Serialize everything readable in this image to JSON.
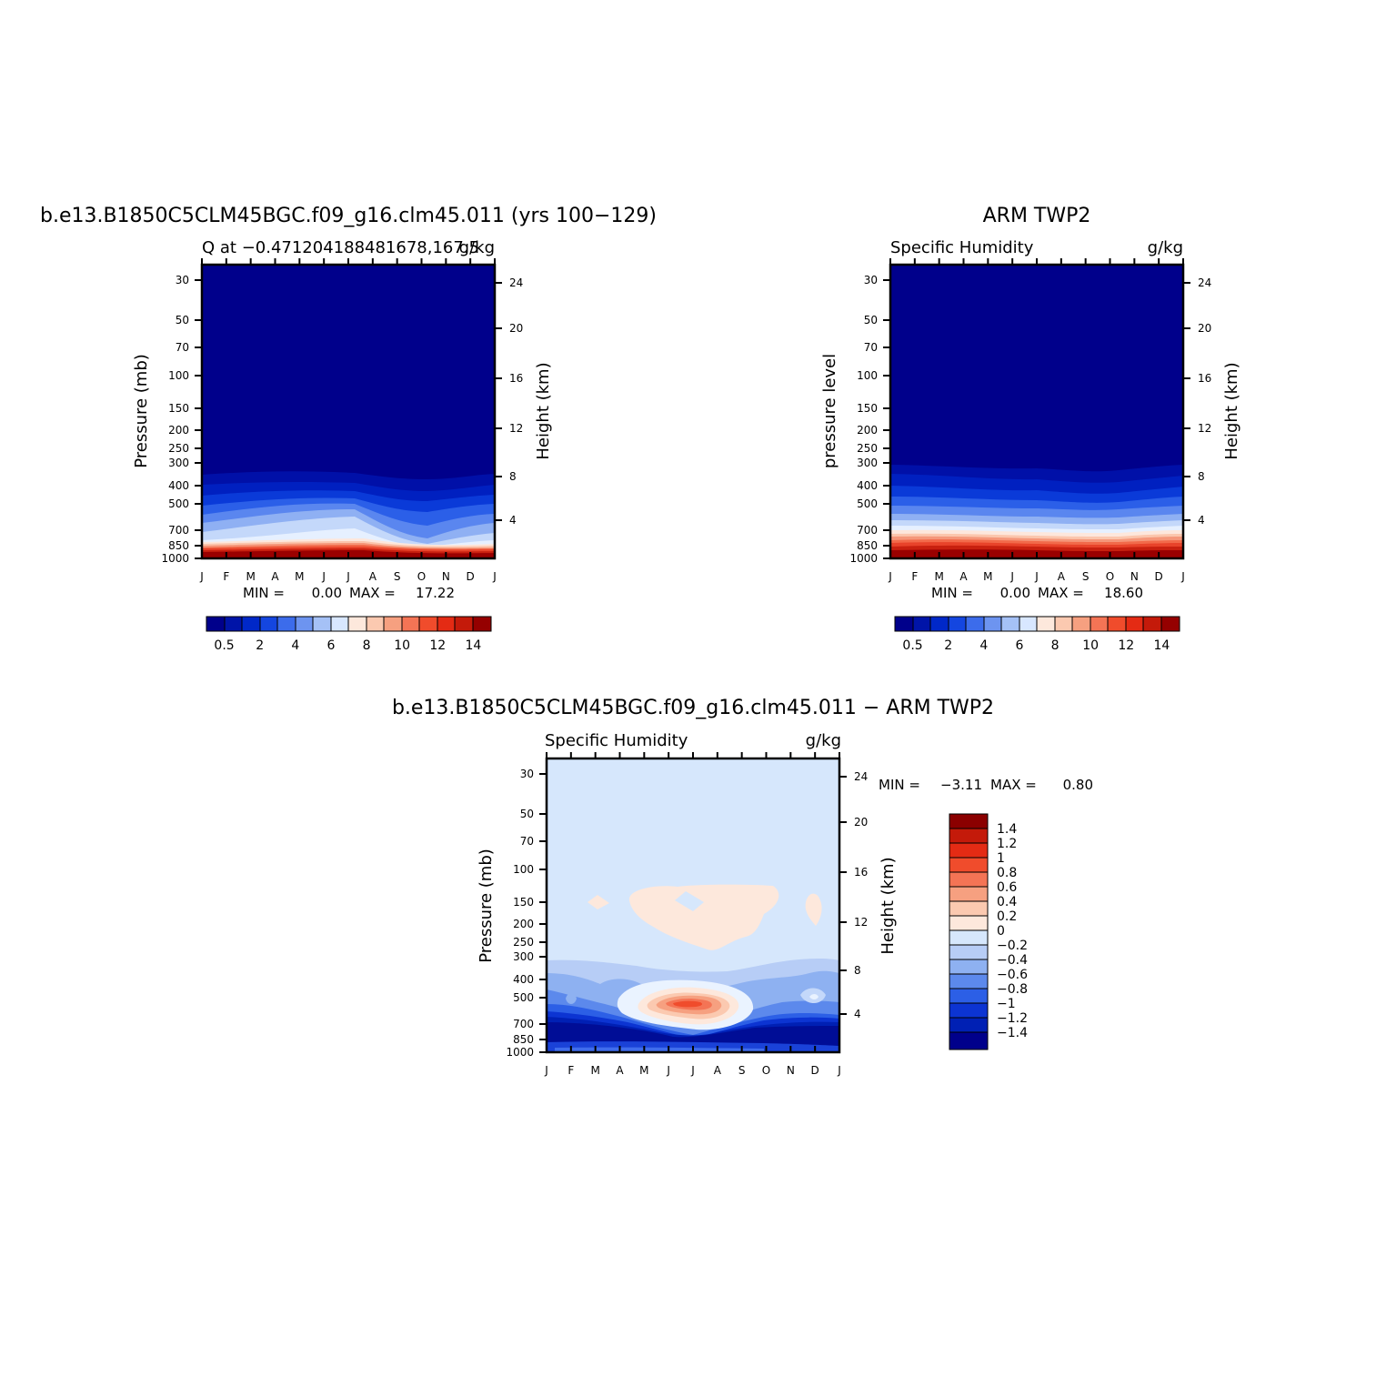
{
  "chart_data": [
    {
      "type": "heatmap",
      "title": "b.e13.B1850C5CLM45BGC.f09_g16.clm45.011 (yrs 100−129)",
      "left_label": "Q at −0.471204188481678,167.5",
      "right_label": "g/kg",
      "ylabel": "Pressure (mb)",
      "y2label": "Height (km)",
      "x_ticks": [
        "J",
        "F",
        "M",
        "A",
        "M",
        "J",
        "J",
        "A",
        "S",
        "O",
        "N",
        "D",
        "J"
      ],
      "y_ticks": [
        "30",
        "50",
        "70",
        "100",
        "150",
        "200",
        "250",
        "300",
        "400",
        "500",
        "700",
        "850",
        "1000"
      ],
      "y2_ticks": [
        "24",
        "20",
        "16",
        "12",
        "8",
        "4"
      ],
      "min_label": "MIN =",
      "min_value": "0.00",
      "max_label": "MAX =",
      "max_value": "17.22",
      "colorbar_labels": [
        "0.5",
        "2",
        "4",
        "6",
        "8",
        "10",
        "12",
        "14"
      ]
    },
    {
      "type": "heatmap",
      "title": "ARM TWP2",
      "left_label": "Specific Humidity",
      "right_label": "g/kg",
      "ylabel": "pressure level",
      "y2label": "Height (km)",
      "x_ticks": [
        "J",
        "F",
        "M",
        "A",
        "M",
        "J",
        "J",
        "A",
        "S",
        "O",
        "N",
        "D",
        "J"
      ],
      "y_ticks": [
        "30",
        "50",
        "70",
        "100",
        "150",
        "200",
        "250",
        "300",
        "400",
        "500",
        "700",
        "850",
        "1000"
      ],
      "y2_ticks": [
        "24",
        "20",
        "16",
        "12",
        "8",
        "4"
      ],
      "min_label": "MIN =",
      "min_value": "0.00",
      "max_label": "MAX =",
      "max_value": "18.60",
      "colorbar_labels": [
        "0.5",
        "2",
        "4",
        "6",
        "8",
        "10",
        "12",
        "14"
      ]
    },
    {
      "type": "heatmap",
      "title": "b.e13.B1850C5CLM45BGC.f09_g16.clm45.011 − ARM TWP2",
      "left_label": "Specific Humidity",
      "right_label": "g/kg",
      "ylabel": "Pressure (mb)",
      "y2label": "Height (km)",
      "x_ticks": [
        "J",
        "F",
        "M",
        "A",
        "M",
        "J",
        "J",
        "A",
        "S",
        "O",
        "N",
        "D",
        "J"
      ],
      "y_ticks": [
        "30",
        "50",
        "70",
        "100",
        "150",
        "200",
        "250",
        "300",
        "400",
        "500",
        "700",
        "850",
        "1000"
      ],
      "y2_ticks": [
        "24",
        "20",
        "16",
        "12",
        "8",
        "4"
      ],
      "min_label": "MIN =",
      "min_value": "−3.11",
      "max_label": "MAX =",
      "max_value": "0.80",
      "colorbar_labels": [
        "1.4",
        "1.2",
        "1",
        "0.8",
        "0.6",
        "0.4",
        "0.2",
        "0",
        "−0.2",
        "−0.4",
        "−0.6",
        "−0.8",
        "−1",
        "−1.2",
        "−1.4"
      ]
    }
  ]
}
